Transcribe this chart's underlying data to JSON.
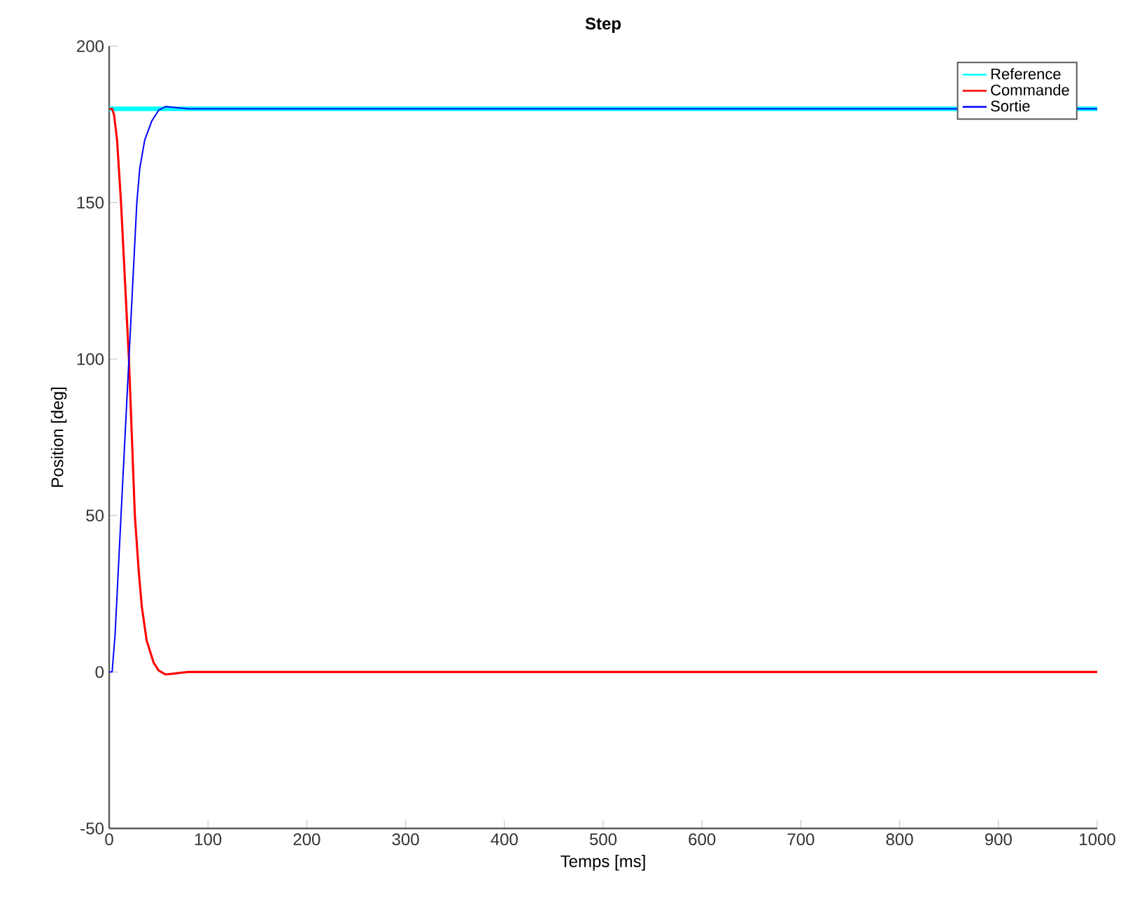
{
  "chart_data": {
    "type": "line",
    "title": "Step",
    "xlabel": "Temps [ms]",
    "ylabel": "Position [deg]",
    "xlim": [
      0,
      1000
    ],
    "xticks": [
      0,
      100,
      200,
      300,
      400,
      500,
      600,
      700,
      800,
      900,
      1000
    ],
    "ylim": [
      -50,
      200
    ],
    "yticks": [
      -50,
      0,
      50,
      100,
      150,
      200
    ],
    "legend": "top right",
    "grid": false,
    "series": [
      {
        "name": "Reference",
        "color": "#00ffff",
        "x": [
          0,
          1000
        ],
        "values": [
          180,
          180
        ]
      },
      {
        "name": "Commande",
        "color": "#ff0000",
        "x": [
          0,
          3,
          5,
          8,
          12,
          20,
          26,
          30,
          33,
          38,
          45,
          50,
          57,
          80,
          1000
        ],
        "values": [
          180,
          180,
          178,
          170,
          150,
          100,
          50,
          32,
          21,
          10,
          3,
          0.5,
          -0.8,
          0,
          0
        ]
      },
      {
        "name": "Sortie",
        "color": "#0000ff",
        "x": [
          0,
          3,
          6,
          12,
          20,
          28,
          31,
          36,
          43,
          50,
          57,
          80,
          1000
        ],
        "values": [
          0,
          0,
          12,
          50,
          100,
          150,
          161,
          170,
          176,
          179.5,
          180.7,
          180,
          180
        ]
      }
    ]
  }
}
